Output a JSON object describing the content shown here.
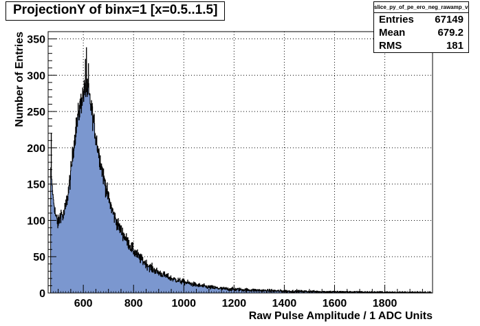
{
  "window": {
    "title": "ProjectionY of binx=1 [x=0.5..1.5]"
  },
  "stats_box": {
    "name": "slice_py_of_pe_ero_neg_rawamp_vs_cntr",
    "rows": [
      {
        "label": "Entries",
        "value": "67149"
      },
      {
        "label": "Mean",
        "value": "679.2"
      },
      {
        "label": "RMS",
        "value": "181"
      }
    ]
  },
  "chart_data": {
    "type": "histogram",
    "title": "ProjectionY of binx=1 [x=0.5..1.5]",
    "xlabel": "Raw Pulse Amplitude / 1 ADC Units",
    "ylabel": "Number of Entries",
    "xlim": [
      460,
      1990
    ],
    "ylim": [
      0,
      360
    ],
    "x_ticks": [
      600,
      800,
      1000,
      1200,
      1400,
      1600,
      1800
    ],
    "y_ticks": [
      0,
      50,
      100,
      150,
      200,
      250,
      300,
      350
    ],
    "grid": true,
    "fill_color": "#7b97cf",
    "line_color": "#000000",
    "bin_width": 1,
    "envelope": {
      "x": [
        470,
        475,
        480,
        490,
        500,
        510,
        520,
        530,
        540,
        550,
        560,
        570,
        580,
        590,
        600,
        610,
        620,
        630,
        640,
        650,
        660,
        670,
        680,
        690,
        700,
        720,
        740,
        760,
        780,
        800,
        825,
        850,
        875,
        900,
        950,
        1000,
        1050,
        1100,
        1150,
        1200,
        1300,
        1400,
        1500,
        1600,
        1700,
        1800,
        1900,
        1985
      ],
      "y": [
        170,
        150,
        130,
        105,
        95,
        110,
        105,
        120,
        140,
        165,
        200,
        225,
        245,
        262,
        275,
        280,
        275,
        258,
        238,
        215,
        195,
        178,
        160,
        145,
        130,
        108,
        92,
        80,
        68,
        58,
        48,
        40,
        33,
        28,
        20,
        15,
        11,
        8,
        6,
        5,
        3.5,
        2.5,
        2,
        1.5,
        1.2,
        1,
        0.8,
        0.6
      ],
      "noise": [
        5,
        5,
        5,
        10,
        10,
        10,
        11,
        12,
        13,
        14,
        15,
        16,
        17,
        17,
        17,
        17,
        17,
        16,
        16,
        15,
        14,
        13,
        13,
        12,
        11,
        10,
        9,
        9,
        8,
        8,
        7,
        6,
        6,
        5,
        4,
        4,
        3,
        3,
        2.5,
        2.5,
        2,
        1.8,
        1.5,
        1.5,
        1.2,
        1,
        1,
        1
      ]
    },
    "spikes": [
      {
        "x": 472,
        "y": 220
      },
      {
        "x": 612,
        "y": 338
      },
      {
        "x": 608,
        "y": 322
      },
      {
        "x": 620,
        "y": 316
      }
    ]
  }
}
